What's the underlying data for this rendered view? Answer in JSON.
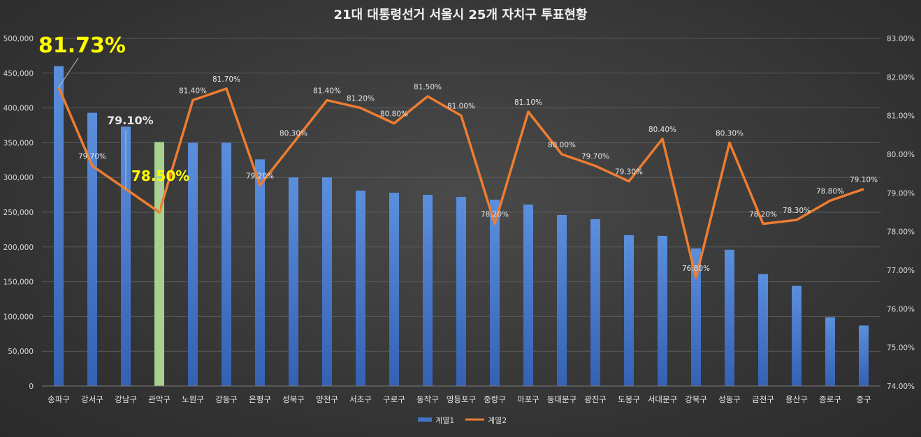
{
  "chart_data": {
    "type": "bar",
    "title": "21대 대통령선거 서울시 25개 자치구 투표현황",
    "categories": [
      "송파구",
      "강서구",
      "강남구",
      "관악구",
      "노원구",
      "강동구",
      "은평구",
      "성북구",
      "양천구",
      "서초구",
      "구로구",
      "동작구",
      "영등포구",
      "중랑구",
      "마포구",
      "동대문구",
      "광진구",
      "도봉구",
      "서대문구",
      "강북구",
      "성동구",
      "금천구",
      "용산구",
      "종로구",
      "중구"
    ],
    "series": [
      {
        "name": "계열1",
        "type": "bar",
        "axis": "left",
        "color": "#4472c4",
        "values": [
          460000,
          393000,
          373000,
          351000,
          350000,
          350000,
          326000,
          300000,
          300000,
          281000,
          278000,
          275000,
          272000,
          268000,
          261000,
          246000,
          240000,
          217000,
          216000,
          198000,
          196000,
          161000,
          144000,
          99000,
          87000
        ]
      },
      {
        "name": "계열2",
        "type": "line",
        "axis": "right",
        "color": "#ed7d31",
        "values": [
          81.73,
          79.7,
          79.1,
          78.5,
          81.4,
          81.7,
          79.2,
          80.3,
          81.4,
          81.2,
          80.8,
          81.5,
          81.0,
          78.2,
          81.1,
          80.0,
          79.7,
          79.3,
          80.4,
          76.8,
          80.3,
          78.2,
          78.3,
          78.8,
          79.1
        ]
      }
    ],
    "line_labels": [
      "",
      "79.70%",
      "",
      "",
      "81.40%",
      "81.70%",
      "79.20%",
      "80.30%",
      "81.40%",
      "81.20%",
      "80.80%",
      "81.50%",
      "81.00%",
      "78.20%",
      "81.10%",
      "80.00%",
      "79.70%",
      "79.30%",
      "80.40%",
      "76.80%",
      "80.30%",
      "78.20%",
      "78.30%",
      "78.80%",
      "79.10%"
    ],
    "highlight": {
      "index": 3,
      "color": "#a9d18e"
    },
    "annotations": [
      {
        "index": 0,
        "text": "81.73%",
        "color": "#ffff00"
      },
      {
        "index": 2,
        "text": "79.10%",
        "color": "#e6e6e6"
      },
      {
        "index": 3,
        "text": "78.50%",
        "color": "#ffff00"
      }
    ],
    "ylim_left": [
      0,
      500000
    ],
    "yticks_left": [
      "0",
      "50,000",
      "100,000",
      "150,000",
      "200,000",
      "250,000",
      "300,000",
      "350,000",
      "400,000",
      "450,000",
      "500,000"
    ],
    "ylim_right": [
      74,
      83
    ],
    "yticks_right": [
      "74.00%",
      "75.00%",
      "76.00%",
      "77.00%",
      "78.00%",
      "79.00%",
      "80.00%",
      "81.00%",
      "82.00%",
      "83.00%"
    ],
    "grid": true,
    "legend_position": "bottom"
  }
}
